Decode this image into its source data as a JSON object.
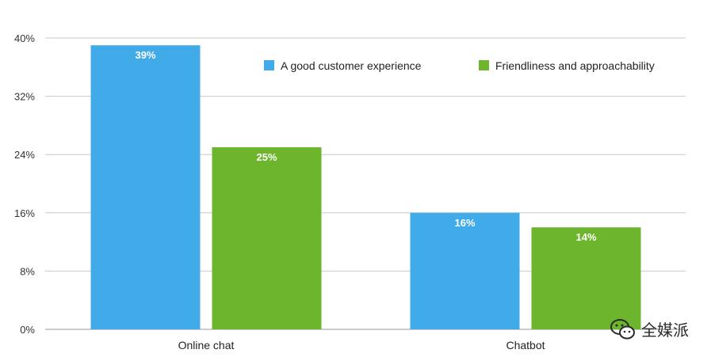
{
  "chart_data": {
    "type": "bar",
    "categories": [
      "Online chat",
      "Chatbot"
    ],
    "series": [
      {
        "name": "A good customer experience",
        "values": [
          39,
          16
        ],
        "color": "#41ABEA"
      },
      {
        "name": "Friendliness and approachability",
        "values": [
          25,
          14
        ],
        "color": "#6CB52D"
      }
    ],
    "ylim": [
      0,
      40
    ],
    "yticks": [
      0,
      8,
      16,
      24,
      32,
      40
    ],
    "tick_suffix": "%",
    "data_label_suffix": "%",
    "grid": true,
    "legend_position": "top-right"
  },
  "watermark": {
    "text": "全媒派",
    "icon": "wechat-icon"
  }
}
